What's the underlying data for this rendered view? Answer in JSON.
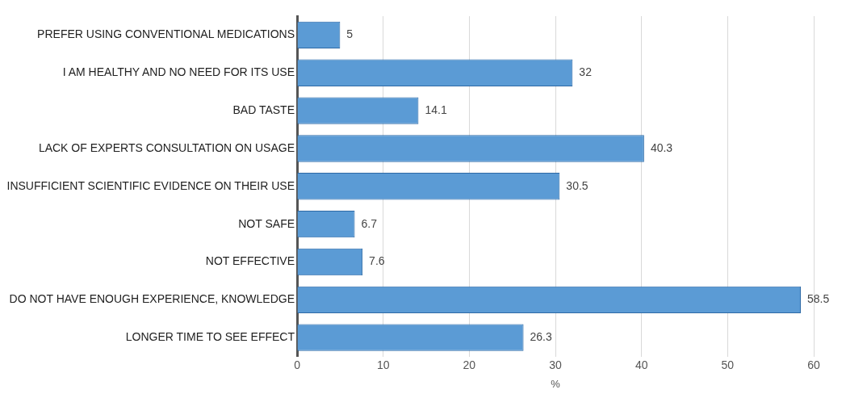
{
  "chart_data": {
    "type": "bar",
    "orientation": "horizontal",
    "xlabel": "%",
    "categories": [
      "PREFER USING CONVENTIONAL MEDICATIONS",
      "I AM HEALTHY AND NO NEED FOR ITS USE",
      "BAD TASTE",
      "LACK OF EXPERTS CONSULTATION ON USAGE",
      "INSUFFICIENT SCIENTIFIC EVIDENCE ON THEIR USE",
      "NOT SAFE",
      "NOT EFFECTIVE",
      "DO NOT HAVE ENOUGH EXPERIENCE, KNOWLEDGE",
      "LONGER TIME TO SEE EFFECT"
    ],
    "values": [
      5,
      32,
      14.1,
      40.3,
      30.5,
      6.7,
      7.6,
      58.5,
      26.3
    ],
    "color": "#5b9bd5",
    "xlim": [
      0,
      60
    ],
    "xticks": [
      0,
      10,
      20,
      30,
      40,
      50,
      60
    ],
    "grid": "x",
    "data_labels": true
  }
}
